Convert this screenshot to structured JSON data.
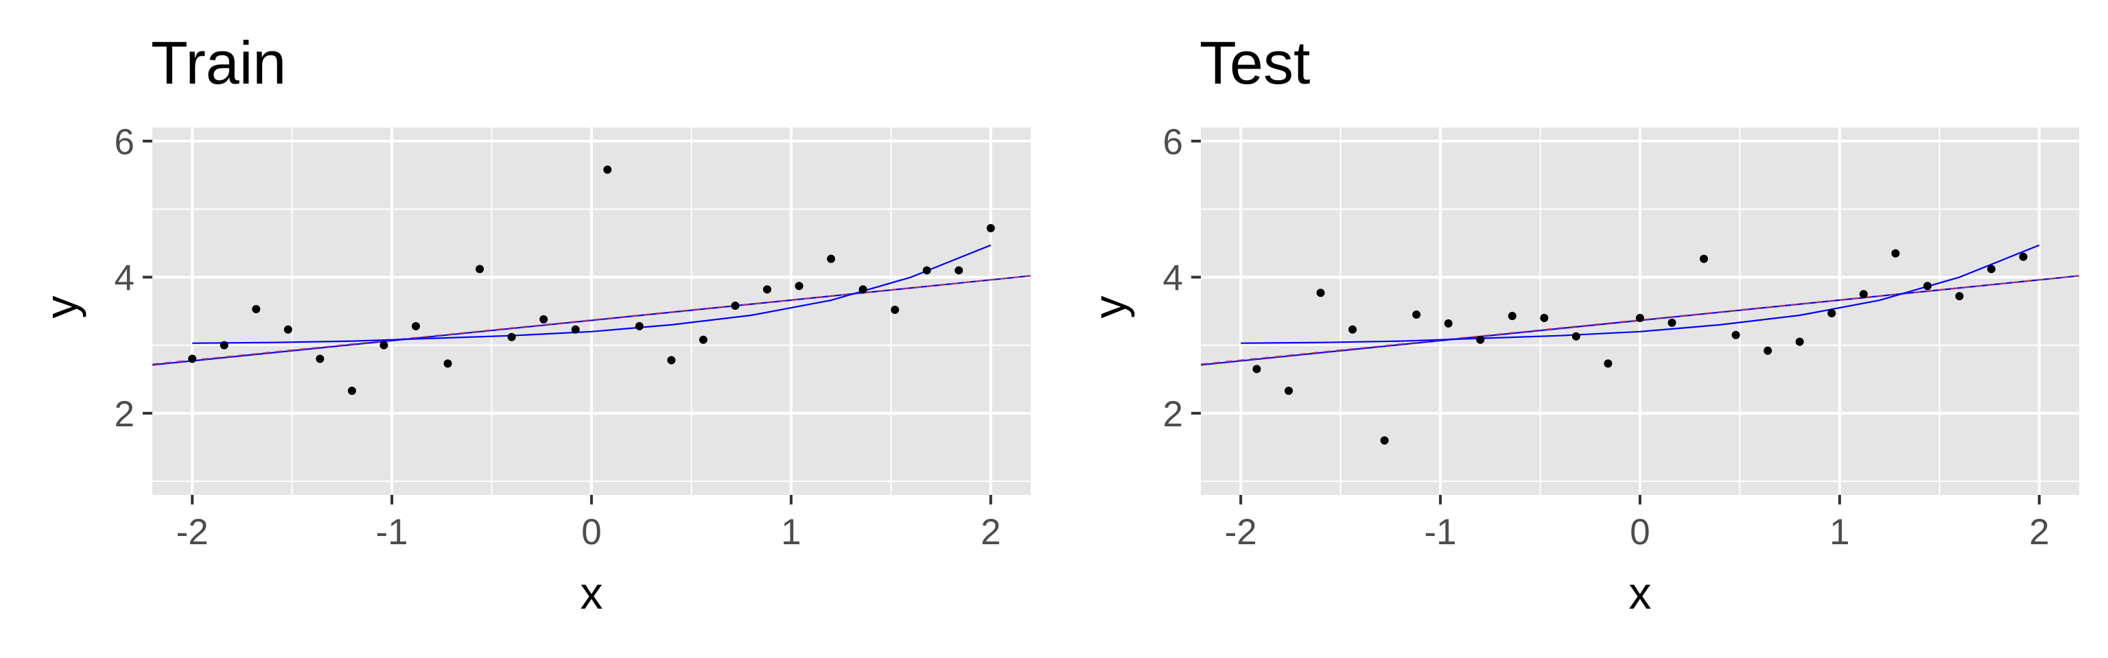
{
  "chart_data": [
    {
      "type": "scatter",
      "title": "Train",
      "xlabel": "x",
      "ylabel": "y",
      "xlim": [
        -2.2,
        2.2
      ],
      "ylim": [
        0.8,
        6.2
      ],
      "x_ticks": [
        -2,
        -1,
        0,
        1,
        2
      ],
      "y_ticks": [
        2,
        4,
        6
      ],
      "x_tick_labels": [
        "-2",
        "-1",
        "0",
        "1",
        "2"
      ],
      "y_tick_labels": [
        "2",
        "4",
        "6"
      ],
      "grid": true,
      "legend": "none",
      "points": {
        "x": [
          -2.0,
          -1.84,
          -1.68,
          -1.52,
          -1.36,
          -1.2,
          -1.04,
          -0.88,
          -0.72,
          -0.56,
          -0.4,
          -0.24,
          -0.08,
          0.08,
          0.24,
          0.4,
          0.56,
          0.72,
          0.88,
          1.04,
          1.2,
          1.36,
          1.52,
          1.68,
          1.84,
          2.0
        ],
        "y": [
          2.8,
          3.0,
          3.53,
          3.23,
          2.8,
          2.33,
          3.0,
          3.28,
          2.73,
          4.12,
          3.12,
          3.38,
          3.23,
          5.58,
          3.28,
          2.78,
          3.08,
          3.58,
          3.82,
          3.87,
          4.27,
          3.82,
          3.52,
          4.1,
          4.1,
          4.72
        ],
        "color": "#000000"
      },
      "lines": [
        {
          "kind": "linear fit",
          "color": "#0000ff",
          "style": "solid",
          "x": [
            -2.2,
            2.2
          ],
          "y": [
            2.71,
            4.02
          ]
        },
        {
          "kind": "true function",
          "color": "#b03060",
          "style": "dashed",
          "x": [
            -2.2,
            2.2
          ],
          "y": [
            2.72,
            4.02
          ]
        },
        {
          "kind": "cubic fit",
          "color": "#0000ff",
          "style": "solid",
          "x": [
            -2.0,
            -1.6,
            -1.2,
            -0.8,
            -0.4,
            0.0,
            0.4,
            0.8,
            1.2,
            1.6,
            2.0
          ],
          "y": [
            3.03,
            3.04,
            3.06,
            3.1,
            3.14,
            3.2,
            3.3,
            3.44,
            3.66,
            4.0,
            4.47
          ]
        }
      ],
      "colors": {
        "panel_bg": "#e5e5e5",
        "grid": "#ffffff",
        "fit": "#0000ff",
        "truth": "#b03060"
      }
    },
    {
      "type": "scatter",
      "title": "Test",
      "xlabel": "x",
      "ylabel": "y",
      "xlim": [
        -2.2,
        2.2
      ],
      "ylim": [
        0.8,
        6.2
      ],
      "x_ticks": [
        -2,
        -1,
        0,
        1,
        2
      ],
      "y_ticks": [
        2,
        4,
        6
      ],
      "x_tick_labels": [
        "-2",
        "-1",
        "0",
        "1",
        "2"
      ],
      "y_tick_labels": [
        "2",
        "4",
        "6"
      ],
      "grid": true,
      "legend": "none",
      "points": {
        "x": [
          -1.92,
          -1.76,
          -1.6,
          -1.44,
          -1.28,
          -1.12,
          -0.96,
          -0.8,
          -0.64,
          -0.48,
          -0.32,
          -0.16,
          0.0,
          0.16,
          0.32,
          0.48,
          0.64,
          0.8,
          0.96,
          1.12,
          1.28,
          1.44,
          1.6,
          1.76,
          1.92
        ],
        "y": [
          2.65,
          2.33,
          3.77,
          3.23,
          1.6,
          3.45,
          3.32,
          3.08,
          3.43,
          3.4,
          3.13,
          2.73,
          3.4,
          3.33,
          4.27,
          3.15,
          2.92,
          3.05,
          3.47,
          3.75,
          4.35,
          3.87,
          3.72,
          4.12,
          4.3
        ],
        "color": "#000000"
      },
      "lines": [
        {
          "kind": "linear fit",
          "color": "#0000ff",
          "style": "solid",
          "x": [
            -2.2,
            2.2
          ],
          "y": [
            2.71,
            4.02
          ]
        },
        {
          "kind": "true function",
          "color": "#b03060",
          "style": "dashed",
          "x": [
            -2.2,
            2.2
          ],
          "y": [
            2.72,
            4.02
          ]
        },
        {
          "kind": "cubic fit",
          "color": "#0000ff",
          "style": "solid",
          "x": [
            -2.0,
            -1.6,
            -1.2,
            -0.8,
            -0.4,
            0.0,
            0.4,
            0.8,
            1.2,
            1.6,
            2.0
          ],
          "y": [
            3.03,
            3.04,
            3.06,
            3.1,
            3.14,
            3.2,
            3.3,
            3.44,
            3.66,
            4.0,
            4.47
          ]
        }
      ],
      "colors": {
        "panel_bg": "#e5e5e5",
        "grid": "#ffffff",
        "fit": "#0000ff",
        "truth": "#b03060"
      }
    }
  ]
}
